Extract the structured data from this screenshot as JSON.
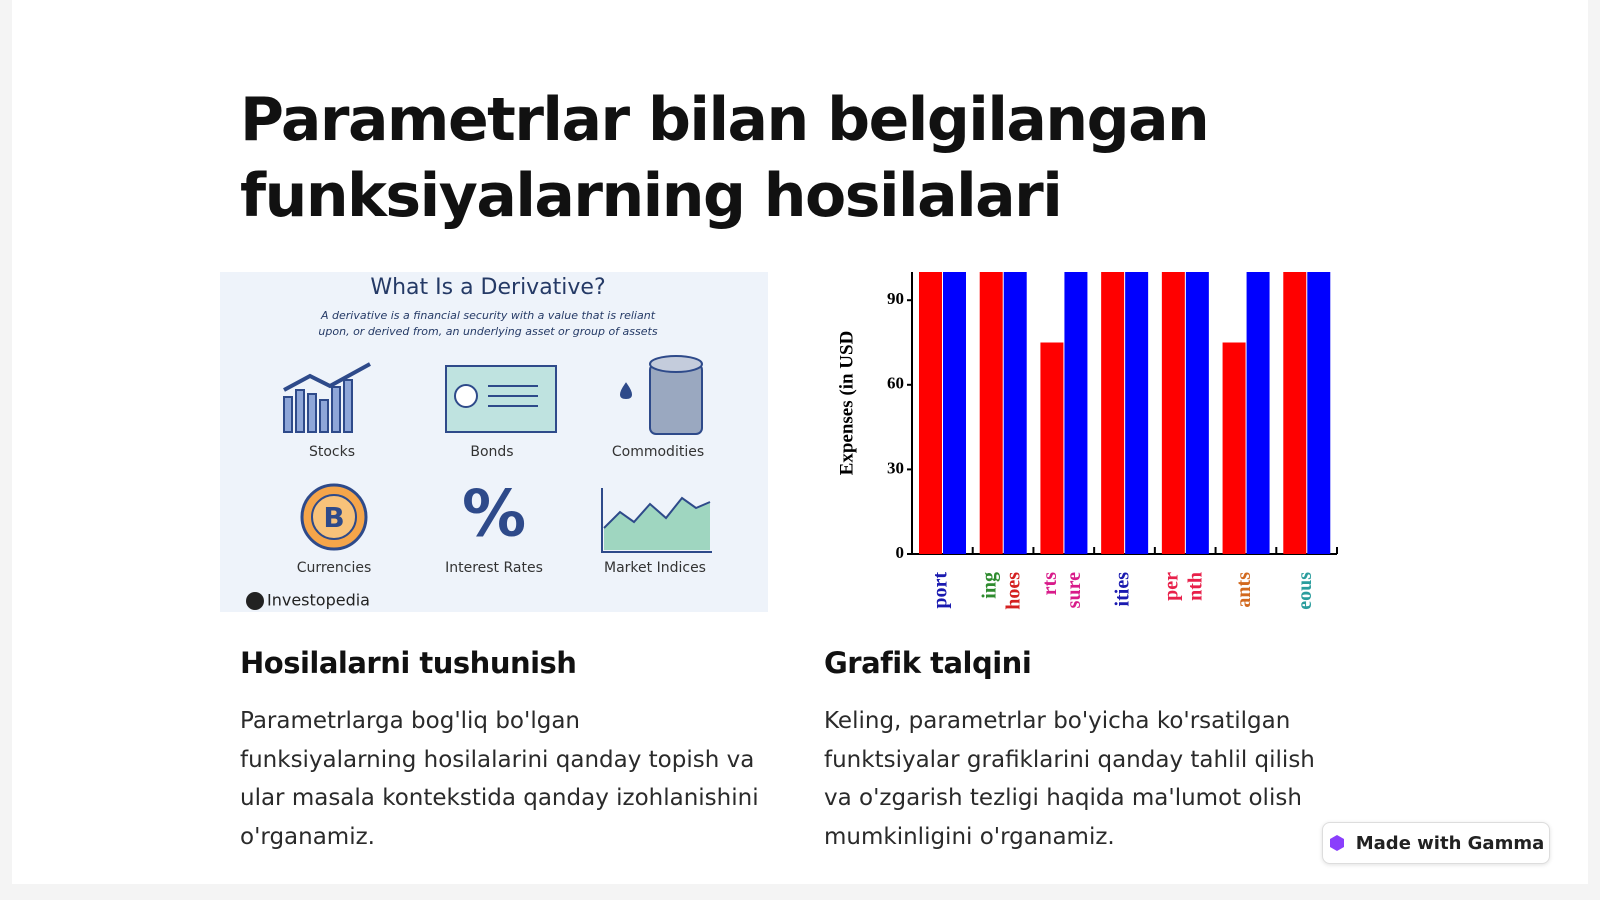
{
  "title": [
    "Parametrlar bilan belgilangan",
    "funksiyalarning hosilalari"
  ],
  "infographic": {
    "title": "What Is a Derivative?",
    "subtitle": [
      "A derivative is a financial security with a value that is reliant",
      "upon, or derived from, an underlying asset or group of assets"
    ],
    "items": [
      "Stocks",
      "Bonds",
      "Commodities",
      "Currencies",
      "Interest Rates",
      "Market Indices"
    ],
    "source": "Investopedia"
  },
  "chart_data": {
    "type": "bar",
    "y_label": "Expenses (in USD",
    "categories": [
      [
        "port"
      ],
      [
        "ing",
        "hoes"
      ],
      [
        "rts",
        "sure"
      ],
      [
        "ities"
      ],
      [
        "per",
        "nth"
      ],
      [
        "ants"
      ],
      [
        "eous"
      ]
    ],
    "category_label_colors": [
      [
        "#1a1ab0"
      ],
      [
        "#2e8b2e",
        "#d42020"
      ],
      [
        "#d81b8a",
        "#d81b8a"
      ],
      [
        "#1a1ab0"
      ],
      [
        "#e8204a",
        "#e8204a"
      ],
      [
        "#d2691e"
      ],
      [
        "#2a9d9d"
      ]
    ],
    "series": [
      {
        "color": "#ff0000",
        "values": [
          100,
          100,
          75,
          100,
          100,
          75,
          100
        ]
      },
      {
        "color": "#0000ff",
        "values": [
          100,
          100,
          100,
          100,
          100,
          100,
          100
        ]
      }
    ],
    "ylim": [
      0,
      100
    ],
    "yticks": [
      0,
      30,
      60,
      90
    ]
  },
  "cards": [
    {
      "heading": "Hosilalarni tushunish",
      "text": "Parametrlarga bog'liq bo'lgan funksiyalarning hosilalarini qanday topish va ular masala kontekstida qanday izohlanishini o'rganamiz."
    },
    {
      "heading": "Grafik talqini",
      "text": "Keling, parametrlar bo'yicha ko'rsatilgan funktsiyalar grafiklarini qanday tahlil qilish va o'zgarish tezligi haqida ma'lumot olish mumkinligini o'rganamiz."
    }
  ],
  "badge": "Made with Gamma"
}
